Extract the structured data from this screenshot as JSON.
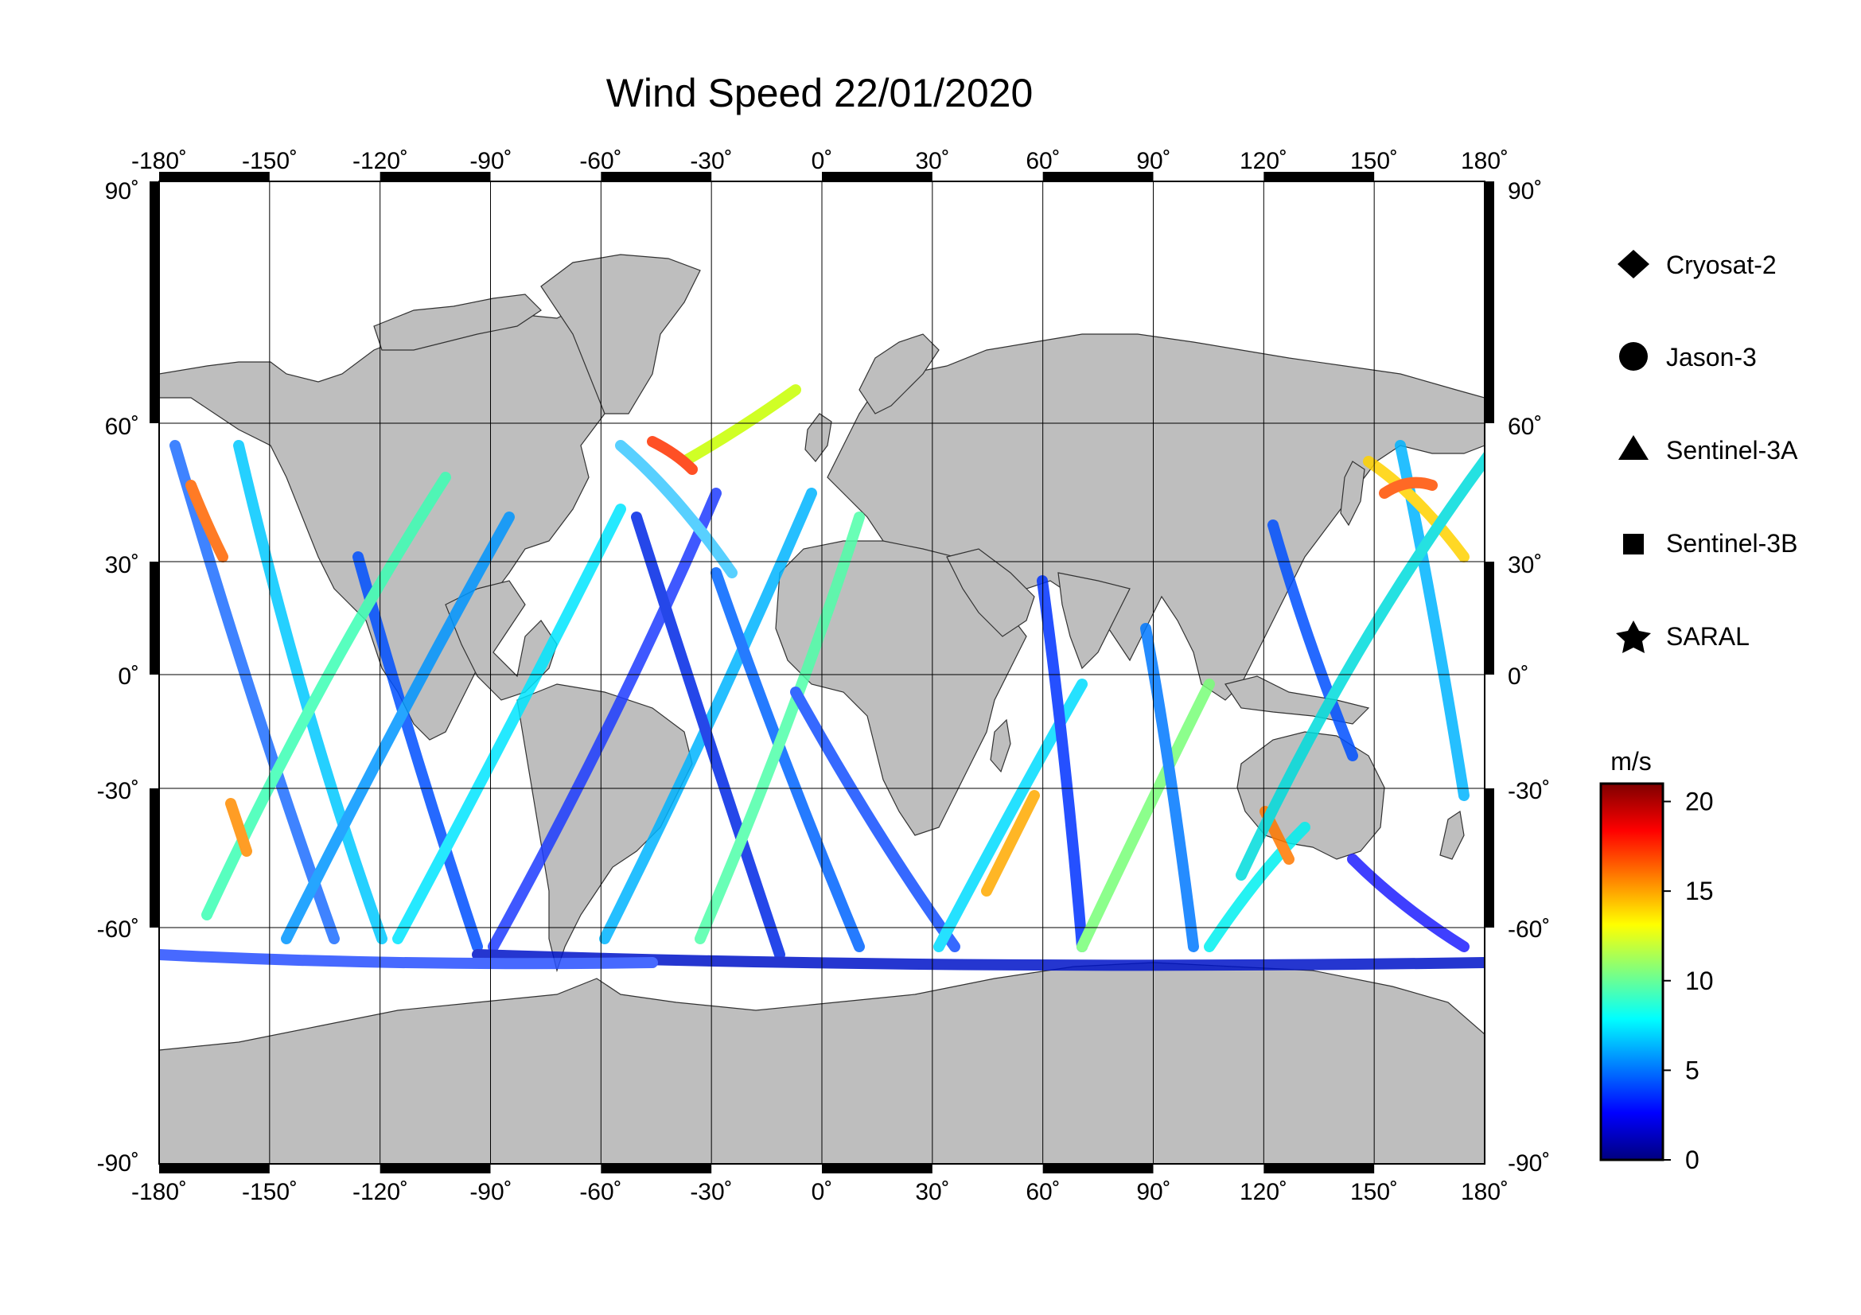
{
  "title": "Wind Speed 22/01/2020",
  "map": {
    "lon_range": [
      -180,
      180
    ],
    "lat_range": [
      -90,
      90
    ],
    "lon_ticks": [
      "-180˚",
      "-150˚",
      "-120˚",
      "-90˚",
      "-60˚",
      "-30˚",
      "0˚",
      "30˚",
      "60˚",
      "90˚",
      "120˚",
      "150˚",
      "180˚"
    ],
    "lat_ticks": [
      "90˚",
      "60˚",
      "30˚",
      "0˚",
      "-30˚",
      "-60˚",
      "-90˚"
    ],
    "land_color": "#bebebe",
    "ocean_color": "#ffffff",
    "grid": true
  },
  "legend": {
    "items": [
      {
        "label": "Cryosat-2",
        "symbol": "diamond"
      },
      {
        "label": "Jason-3",
        "symbol": "circle"
      },
      {
        "label": "Sentinel-3A",
        "symbol": "triangle"
      },
      {
        "label": "Sentinel-3B",
        "symbol": "square"
      },
      {
        "label": "SARAL",
        "symbol": "star"
      }
    ]
  },
  "colorbar": {
    "unit": "m/s",
    "min": 0,
    "max": 21,
    "ticks": [
      "0",
      "5",
      "10",
      "15",
      "20"
    ],
    "colormap": [
      "#00007f",
      "#0000ff",
      "#007fff",
      "#00ffff",
      "#7fff7f",
      "#ffff00",
      "#ff7f00",
      "#ff0000",
      "#7f0000"
    ]
  }
}
